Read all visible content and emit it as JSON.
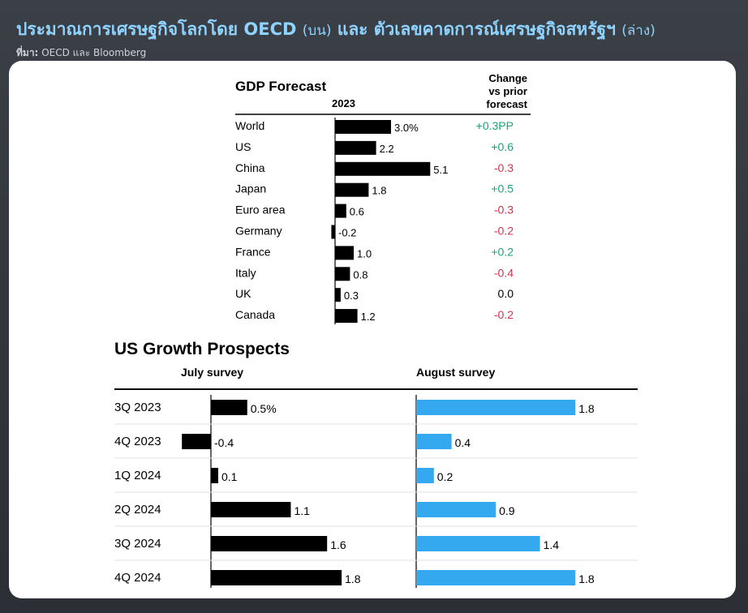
{
  "header": {
    "title": "ประมาณการเศรษฐกิจโลกโดย OECD",
    "title_top_note": "(บน)",
    "title_mid": "และ ตัวเลขคาดการณ์เศรษฐกิจสหรัฐฯ",
    "title_bottom_note": "(ล่าง)",
    "source_label": "ที่มา:",
    "source_text": "OECD และ Bloomberg"
  },
  "colors": {
    "title": "#8fd3ff",
    "bar_black": "#000000",
    "bar_blue": "#35a9ef",
    "positive": "#1aa37a",
    "negative": "#d2334a",
    "neutral": "#000000"
  },
  "chart_data": [
    {
      "type": "bar",
      "title": "GDP Forecast",
      "column_label": "2023",
      "change_header": [
        "Change",
        "vs prior",
        "forecast"
      ],
      "categories": [
        "World",
        "US",
        "China",
        "Japan",
        "Euro area",
        "Germany",
        "France",
        "Italy",
        "UK",
        "Canada"
      ],
      "values": [
        3.0,
        2.2,
        5.1,
        1.8,
        0.6,
        -0.2,
        1.0,
        0.8,
        0.3,
        1.2
      ],
      "value_labels": [
        "3.0%",
        "2.2",
        "5.1",
        "1.8",
        "0.6",
        "-0.2",
        "1.0",
        "0.8",
        "0.3",
        "1.2"
      ],
      "changes": [
        "+0.3PP",
        "+0.6",
        "-0.3",
        "+0.5",
        "-0.3",
        "-0.2",
        "+0.2",
        "-0.4",
        "0.0",
        "-0.2"
      ]
    },
    {
      "type": "bar",
      "title": "US Growth Prospects",
      "categories": [
        "3Q 2023",
        "4Q 2023",
        "1Q 2024",
        "2Q 2024",
        "3Q 2024",
        "4Q 2024"
      ],
      "series": [
        {
          "name": "July survey",
          "values": [
            0.5,
            -0.4,
            0.1,
            1.1,
            1.6,
            1.8
          ],
          "value_labels": [
            "0.5%",
            "-0.4",
            "0.1",
            "1.1",
            "1.6",
            "1.8"
          ]
        },
        {
          "name": "August survey",
          "values": [
            1.8,
            0.4,
            0.2,
            0.9,
            1.4,
            1.8
          ],
          "value_labels": [
            "1.8",
            "0.4",
            "0.2",
            "0.9",
            "1.4",
            "1.8"
          ]
        }
      ]
    }
  ]
}
